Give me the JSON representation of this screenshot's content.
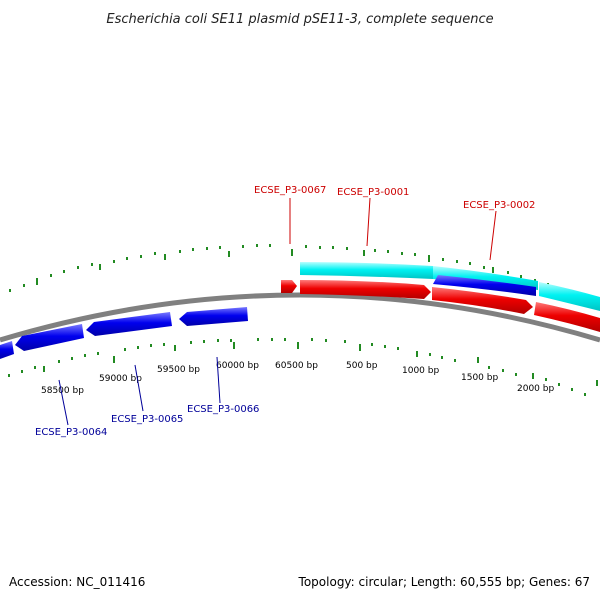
{
  "title": "Escherichia coli SE11 plasmid pSE11-3, complete sequence",
  "footer": {
    "accession": "Accession: NC_011416",
    "summary": "Topology: circular; Length: 60,555 bp; Genes: 67"
  },
  "colors": {
    "forward_strand": "#ee0000",
    "reverse_strand": "#0000ee",
    "feature_track": "#00ffff",
    "backbone": "#808080",
    "tick": "#228b22",
    "forward_label": "#cc0000",
    "reverse_label": "#000099"
  },
  "tick_labels": {
    "t58500": "58500 bp",
    "t59000": "59000 bp",
    "t59500": "59500 bp",
    "t60000": "60000 bp",
    "t60500": "60500 bp",
    "t500": "500 bp",
    "t1000": "1000 bp",
    "t1500": "1500 bp",
    "t2000": "2000 bp"
  },
  "genes": {
    "g0067": "ECSE_P3-0067",
    "g0001": "ECSE_P3-0001",
    "g0002": "ECSE_P3-0002",
    "g0064": "ECSE_P3-0064",
    "g0065": "ECSE_P3-0065",
    "g0066": "ECSE_P3-0066"
  }
}
